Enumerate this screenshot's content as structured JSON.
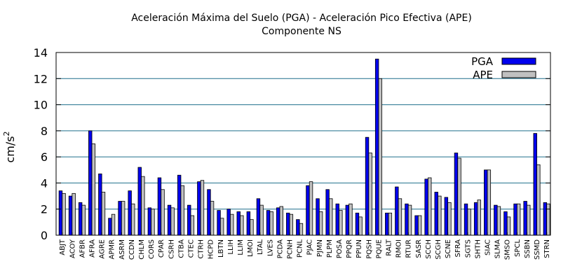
{
  "chart_data": {
    "type": "bar",
    "title": "Aceleración Máxima del Suelo (PGA) -   Aceleración Pico Efectiva (APE)",
    "subtitle": "Componente NS",
    "ylabel": "cm/s",
    "ylabel_superscript": "2",
    "ylim": [
      0,
      14
    ],
    "yticks": [
      0,
      2,
      4,
      6,
      8,
      10,
      12,
      14
    ],
    "grid": "horizontal",
    "legend_position": "top-right",
    "categories": [
      "ABJT",
      "ACOY",
      "AFBR",
      "AFRA",
      "AGRE",
      "APMR",
      "ASRM",
      "CCDN",
      "CHLM",
      "CORS",
      "CPAR",
      "CSRH",
      "CTBA",
      "CTEC",
      "CTRH",
      "HCPD",
      "LBTN",
      "LLIH",
      "LLIM",
      "LMOI",
      "LTAL",
      "LVES",
      "PCDA",
      "PCNH",
      "PCNL",
      "PJAC",
      "PJMN",
      "PLPM",
      "POSA",
      "PPQR",
      "PPUN",
      "PQSH",
      "PQUE",
      "RALT",
      "RMOI",
      "RTUR",
      "SASR",
      "SCCH",
      "SCGH",
      "SCNE",
      "SFRA",
      "SGTS",
      "SHTH",
      "SIAC",
      "SLMA",
      "SMSO",
      "SPCL",
      "SSBN",
      "SSMD",
      "STRN"
    ],
    "series": [
      {
        "name": "PGA",
        "color": "#0000ee",
        "values": [
          3.4,
          3.0,
          2.5,
          8.0,
          4.7,
          1.3,
          2.6,
          3.4,
          5.2,
          2.1,
          4.4,
          2.3,
          4.6,
          2.3,
          4.1,
          3.5,
          1.9,
          2.0,
          1.8,
          1.8,
          2.8,
          1.9,
          2.1,
          1.7,
          1.2,
          3.8,
          2.8,
          3.5,
          2.4,
          2.3,
          1.7,
          7.5,
          13.5,
          1.7,
          3.7,
          2.4,
          1.5,
          4.3,
          3.3,
          2.9,
          6.3,
          2.4,
          2.5,
          5.0,
          2.3,
          1.8,
          2.4,
          2.6,
          7.8,
          2.5
        ]
      },
      {
        "name": "APE",
        "color": "#c0c0c0",
        "values": [
          3.2,
          3.2,
          2.3,
          7.0,
          3.3,
          1.6,
          2.6,
          2.4,
          4.5,
          2.0,
          3.5,
          2.1,
          3.8,
          1.5,
          4.2,
          2.6,
          1.3,
          1.6,
          1.5,
          1.2,
          2.3,
          1.8,
          2.2,
          1.6,
          0.9,
          4.1,
          1.8,
          2.8,
          1.9,
          2.4,
          1.4,
          6.3,
          12.0,
          1.7,
          2.8,
          2.3,
          1.5,
          4.4,
          3.0,
          2.5,
          5.9,
          2.0,
          2.7,
          5.0,
          2.2,
          1.4,
          2.4,
          2.3,
          5.4,
          2.4
        ]
      }
    ]
  }
}
